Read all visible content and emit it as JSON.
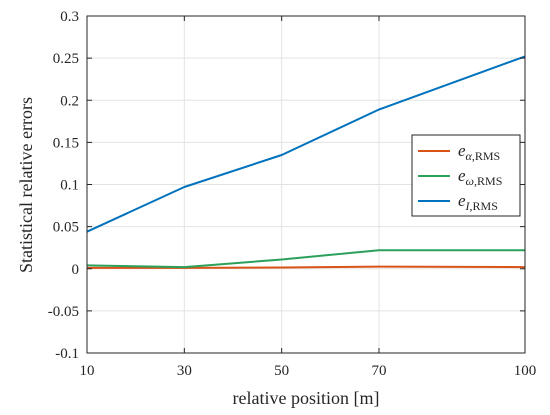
{
  "chart_data": {
    "type": "line",
    "title": "",
    "xlabel": "relative position [m]",
    "ylabel": "Statistical relative errors",
    "x": [
      10,
      30,
      50,
      70,
      100
    ],
    "x_ticks": [
      "10",
      "30",
      "50",
      "70",
      "100"
    ],
    "y_ticks": [
      "-0.1",
      "-0.05",
      "0",
      "0.05",
      "0.1",
      "0.15",
      "0.2",
      "0.25",
      "0.3"
    ],
    "xlim": [
      10,
      100
    ],
    "ylim": [
      -0.1,
      0.3
    ],
    "grid": true,
    "legend_position": "right",
    "series": [
      {
        "name": "α",
        "color": "#D95319",
        "values": [
          0.001,
          0.001,
          0.0015,
          0.0025,
          0.002
        ]
      },
      {
        "name": "ω",
        "color": "#2CA05A",
        "values": [
          0.004,
          0.002,
          0.011,
          0.022,
          0.022
        ]
      },
      {
        "name": "I",
        "color": "#0072BD",
        "values": [
          0.044,
          0.097,
          0.135,
          0.189,
          0.252
        ]
      }
    ],
    "legend_base": "e",
    "legend_suffix": ",RMS"
  }
}
